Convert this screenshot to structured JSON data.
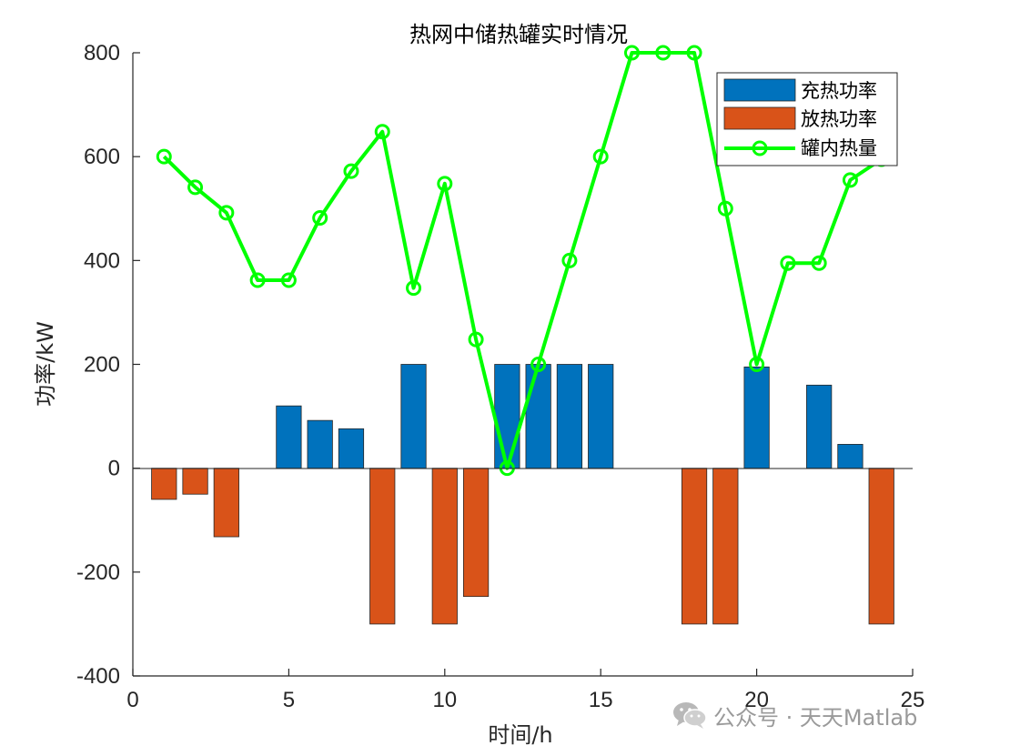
{
  "chart_data": {
    "type": "bar+line",
    "title": "热网中储热罐实时情况",
    "xlabel": "时间/h",
    "ylabel": "功率/kW",
    "xlim": [
      0,
      25
    ],
    "ylim": [
      -400,
      800
    ],
    "xticks": [
      0,
      5,
      10,
      15,
      20,
      25
    ],
    "yticks": [
      -400,
      -200,
      0,
      200,
      400,
      600,
      800
    ],
    "x": [
      1,
      2,
      3,
      4,
      5,
      6,
      7,
      8,
      9,
      10,
      11,
      12,
      13,
      14,
      15,
      16,
      17,
      18,
      19,
      20,
      21,
      22,
      23,
      24
    ],
    "series": [
      {
        "name": "充热功率",
        "type": "bar",
        "color": "#0072BD",
        "values": [
          0,
          0,
          0,
          0,
          120,
          92,
          76,
          0,
          200,
          0,
          0,
          200,
          200,
          200,
          200,
          0,
          0,
          0,
          0,
          195,
          0,
          160,
          46,
          0
        ]
      },
      {
        "name": "放热功率",
        "type": "bar",
        "color": "#D95319",
        "values": [
          -60,
          -50,
          -132,
          0,
          0,
          0,
          0,
          -300,
          0,
          -300,
          -247,
          0,
          0,
          0,
          0,
          0,
          0,
          -300,
          -300,
          0,
          0,
          0,
          0,
          -300
        ]
      },
      {
        "name": "罐内热量",
        "type": "line",
        "color": "#00FF00",
        "marker": "circle",
        "values": [
          600,
          541,
          492,
          362,
          362,
          482,
          572,
          648,
          347,
          548,
          248,
          0,
          200,
          400,
          600,
          800,
          800,
          800,
          500,
          200,
          395,
          395,
          555,
          595
        ]
      }
    ],
    "legend": "top-right",
    "grid": false
  },
  "watermark": {
    "text": "公众号 · 天天Matlab",
    "icon": "wechat-icon"
  }
}
